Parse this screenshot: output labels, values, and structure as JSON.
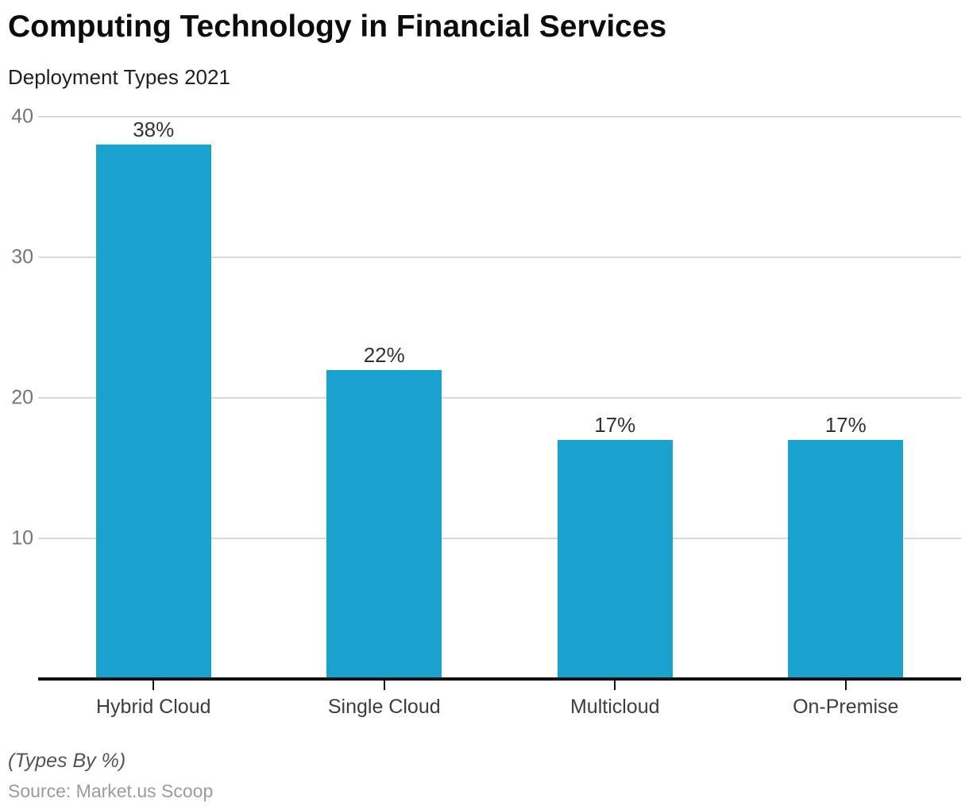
{
  "header": {
    "title": "Computing Technology in Financial Services",
    "subtitle": "Deployment Types 2021"
  },
  "footer": {
    "note": "(Types By %)",
    "source": "Source: Market.us Scoop"
  },
  "chart_data": {
    "type": "bar",
    "title": "Computing Technology in Financial Services",
    "subtitle": "Deployment Types 2021",
    "categories": [
      "Hybrid Cloud",
      "Single Cloud",
      "Multicloud",
      "On-Premise"
    ],
    "values": [
      38,
      22,
      17,
      17
    ],
    "value_labels": [
      "38%",
      "22%",
      "17%",
      "17%"
    ],
    "unit": "%",
    "ylim": [
      0,
      40
    ],
    "yticks": [
      10,
      20,
      30,
      40
    ],
    "grid": "horizontal",
    "legend": "none",
    "bar_color": "#19A2CD",
    "gridline_color": "#d9d9d9",
    "axis_color": "#111111",
    "ytick_label_color": "#757575",
    "value_label_color": "#333333",
    "category_label_color": "#3d3d3d"
  }
}
